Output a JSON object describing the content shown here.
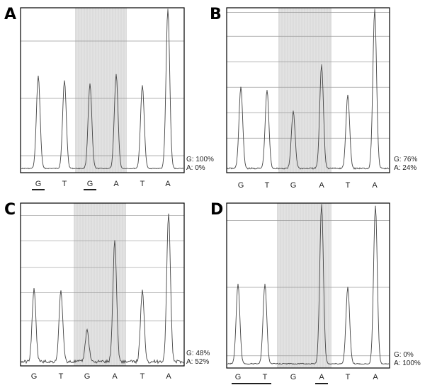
{
  "chart_data": [
    {
      "type": "line",
      "panel": "A",
      "categories": [
        "G",
        "T",
        "G",
        "A",
        "T",
        "A"
      ],
      "peaks": [
        0.58,
        0.55,
        0.53,
        0.59,
        0.52,
        1.0
      ],
      "highlight_range": [
        2,
        3
      ],
      "underline": [
        0,
        2
      ],
      "ratio_g": "G: 100%",
      "ratio_a": "A: 0%",
      "grid": true,
      "grid_levels": [
        0.08,
        0.44,
        0.8
      ]
    },
    {
      "type": "line",
      "panel": "B",
      "categories": [
        "G",
        "T",
        "G",
        "A",
        "T",
        "A"
      ],
      "peaks": [
        0.51,
        0.49,
        0.36,
        0.65,
        0.46,
        1.0
      ],
      "highlight_range": [
        2,
        3
      ],
      "underline": [],
      "ratio_g": "G: 76%",
      "ratio_a": "A: 24%",
      "grid": true,
      "grid_levels": [
        0.19,
        0.35,
        0.51,
        0.67,
        0.83,
        0.98
      ]
    },
    {
      "type": "line",
      "panel": "C",
      "categories": [
        "G",
        "T",
        "G",
        "A",
        "T",
        "A"
      ],
      "peaks": [
        0.46,
        0.45,
        0.2,
        0.77,
        0.45,
        0.94
      ],
      "highlight_range": [
        2,
        3
      ],
      "underline": [],
      "ratio_g": "G: 48%",
      "ratio_a": "A: 52%",
      "grid": true,
      "grid_levels": [
        0.26,
        0.44,
        0.6,
        0.77,
        0.93
      ]
    },
    {
      "type": "line",
      "panel": "D",
      "categories": [
        "G",
        "T",
        "G",
        "A",
        "T",
        "A"
      ],
      "peaks": [
        0.5,
        0.5,
        0.0,
        1.0,
        0.48,
        0.99
      ],
      "highlight_range": [
        2,
        3
      ],
      "underline": [
        0,
        1,
        3
      ],
      "ratio_g": "G: 0%",
      "ratio_a": "A: 100%",
      "grid": true,
      "grid_levels": [
        0.05,
        0.48,
        0.9
      ]
    }
  ]
}
